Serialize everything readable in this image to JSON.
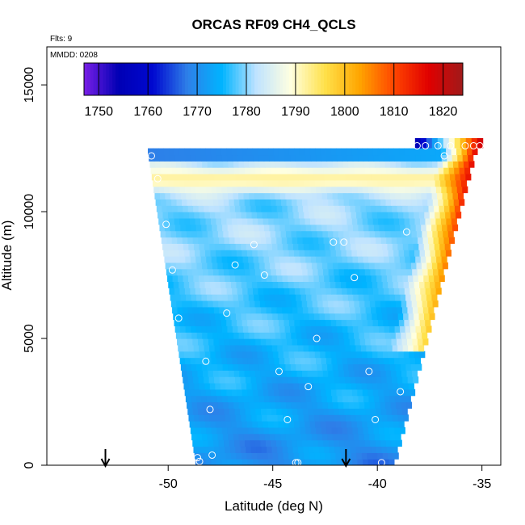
{
  "chart_data": {
    "type": "heatmap",
    "title": "ORCAS RF09 CH4_QCLS",
    "annotations": {
      "flights": "Flts: 9",
      "mmdd": "MMDD: 0208"
    },
    "xlabel": "Latitude (deg N)",
    "ylabel": "Altitude (m)",
    "xlim": [
      -55.8,
      -34.1
    ],
    "ylim": [
      0,
      16500
    ],
    "x_ticks": [
      -50,
      -45,
      -40,
      -35
    ],
    "x_tick_labels": [
      "-50",
      "-45",
      "-40",
      "-35"
    ],
    "y_ticks": [
      0,
      5000,
      10000,
      15000
    ],
    "y_tick_labels": [
      "0",
      "5000",
      "10000",
      "15000"
    ],
    "colorbar": {
      "min": 1747,
      "max": 1824,
      "ticks": [
        1750,
        1760,
        1770,
        1780,
        1790,
        1800,
        1810,
        1820
      ],
      "tick_labels": [
        "1750",
        "1760",
        "1770",
        "1780",
        "1790",
        "1800",
        "1810",
        "1820"
      ],
      "placement": "top inside plot",
      "colors": [
        "#7a1fe6",
        "#0000b4",
        "#0008d0",
        "#2e7fe8",
        "#00b4ff",
        "#bfe3ff",
        "#ffffe0",
        "#ffe14a",
        "#ffa500",
        "#ff4500",
        "#e00000",
        "#a01a1a"
      ]
    },
    "field_extent": {
      "top_left": [
        -51.0,
        12400
      ],
      "bottom_left": [
        -48.7,
        0
      ],
      "bottom_right": [
        -39.3,
        0
      ],
      "top_right": [
        -35.2,
        12700
      ]
    },
    "value_pattern": {
      "low_altitude_mean": 1770,
      "mid_altitude_mean": 1780,
      "upper_band_altitude": 11300,
      "upper_band_value": 1792,
      "east_edge_values": [
        1795,
        1805,
        1815
      ],
      "top_west_value": 1768
    },
    "observation_points": [
      {
        "lat": -50.8,
        "alt": 12200
      },
      {
        "lat": -50.5,
        "alt": 11300
      },
      {
        "lat": -50.1,
        "alt": 9500
      },
      {
        "lat": -49.8,
        "alt": 7700
      },
      {
        "lat": -49.5,
        "alt": 5800
      },
      {
        "lat": -48.2,
        "alt": 4100
      },
      {
        "lat": -48.0,
        "alt": 2200
      },
      {
        "lat": -47.9,
        "alt": 400
      },
      {
        "lat": -48.6,
        "alt": 300
      },
      {
        "lat": -48.5,
        "alt": 150
      },
      {
        "lat": -47.2,
        "alt": 6000
      },
      {
        "lat": -46.8,
        "alt": 7900
      },
      {
        "lat": -45.9,
        "alt": 8700
      },
      {
        "lat": -45.4,
        "alt": 7500
      },
      {
        "lat": -44.7,
        "alt": 3700
      },
      {
        "lat": -44.3,
        "alt": 1800
      },
      {
        "lat": -43.9,
        "alt": 100
      },
      {
        "lat": -43.8,
        "alt": 100
      },
      {
        "lat": -43.3,
        "alt": 3100
      },
      {
        "lat": -42.9,
        "alt": 5000
      },
      {
        "lat": -42.1,
        "alt": 8800
      },
      {
        "lat": -41.6,
        "alt": 8800
      },
      {
        "lat": -41.1,
        "alt": 7400
      },
      {
        "lat": -40.4,
        "alt": 3700
      },
      {
        "lat": -40.1,
        "alt": 1800
      },
      {
        "lat": -39.8,
        "alt": 100
      },
      {
        "lat": -38.9,
        "alt": 2900
      },
      {
        "lat": -38.6,
        "alt": 9200
      },
      {
        "lat": -38.1,
        "alt": 12600
      },
      {
        "lat": -37.7,
        "alt": 12600
      },
      {
        "lat": -37.1,
        "alt": 12600
      },
      {
        "lat": -36.8,
        "alt": 12200
      },
      {
        "lat": -36.5,
        "alt": 12600
      },
      {
        "lat": -35.8,
        "alt": 12600
      },
      {
        "lat": -35.4,
        "alt": 12600
      },
      {
        "lat": -35.1,
        "alt": 12600
      }
    ],
    "arrow_latitudes": [
      -53.0,
      -41.5
    ]
  }
}
